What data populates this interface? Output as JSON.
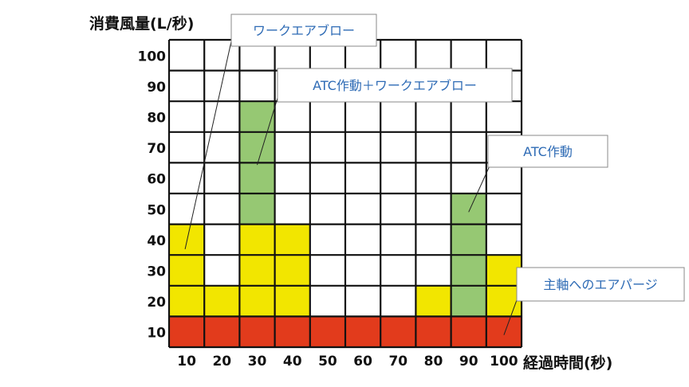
{
  "chart_data": {
    "type": "heatmap",
    "ylabel": "消費風量(L/秒)",
    "xlabel": "経過時間(秒)",
    "x_ticks": [
      "10",
      "20",
      "30",
      "40",
      "50",
      "60",
      "70",
      "80",
      "90",
      "100"
    ],
    "y_ticks": [
      "100",
      "90",
      "80",
      "70",
      "60",
      "50",
      "40",
      "30",
      "20",
      "10"
    ],
    "x_range": [
      10,
      100
    ],
    "y_range": [
      10,
      100
    ],
    "grid": true,
    "colors": {
      "spindle_purge": "#e23b1c",
      "work_air_blow": "#f2e600",
      "atc": "#96c873",
      "empty": "#ffffff",
      "grid": "#111111",
      "callout_text": "#2e6bb5"
    },
    "cells": [
      {
        "x": 10,
        "from": 10,
        "to": 10,
        "series": "spindle_purge"
      },
      {
        "x": 20,
        "from": 10,
        "to": 10,
        "series": "spindle_purge"
      },
      {
        "x": 30,
        "from": 10,
        "to": 10,
        "series": "spindle_purge"
      },
      {
        "x": 40,
        "from": 10,
        "to": 10,
        "series": "spindle_purge"
      },
      {
        "x": 50,
        "from": 10,
        "to": 10,
        "series": "spindle_purge"
      },
      {
        "x": 60,
        "from": 10,
        "to": 10,
        "series": "spindle_purge"
      },
      {
        "x": 70,
        "from": 10,
        "to": 10,
        "series": "spindle_purge"
      },
      {
        "x": 80,
        "from": 10,
        "to": 10,
        "series": "spindle_purge"
      },
      {
        "x": 90,
        "from": 10,
        "to": 10,
        "series": "spindle_purge"
      },
      {
        "x": 100,
        "from": 10,
        "to": 10,
        "series": "spindle_purge"
      },
      {
        "x": 10,
        "from": 20,
        "to": 40,
        "series": "work_air_blow"
      },
      {
        "x": 20,
        "from": 20,
        "to": 20,
        "series": "work_air_blow"
      },
      {
        "x": 30,
        "from": 20,
        "to": 40,
        "series": "work_air_blow"
      },
      {
        "x": 30,
        "from": 50,
        "to": 80,
        "series": "atc"
      },
      {
        "x": 40,
        "from": 20,
        "to": 40,
        "series": "work_air_blow"
      },
      {
        "x": 80,
        "from": 20,
        "to": 20,
        "series": "work_air_blow"
      },
      {
        "x": 90,
        "from": 20,
        "to": 50,
        "series": "atc"
      },
      {
        "x": 100,
        "from": 20,
        "to": 30,
        "series": "work_air_blow"
      }
    ],
    "annotations": [
      {
        "text": "ワークエアブロー",
        "points_to": {
          "x": 10,
          "y": 40
        }
      },
      {
        "text": "ATC作動＋ワークエアブロー",
        "points_to": {
          "x": 30,
          "y": 70
        }
      },
      {
        "text": "ATC作動",
        "points_to": {
          "x": 90,
          "y": 50
        }
      },
      {
        "text": "主軸へのエアパージ",
        "points_to": {
          "x": 100,
          "y": 10
        }
      }
    ]
  }
}
